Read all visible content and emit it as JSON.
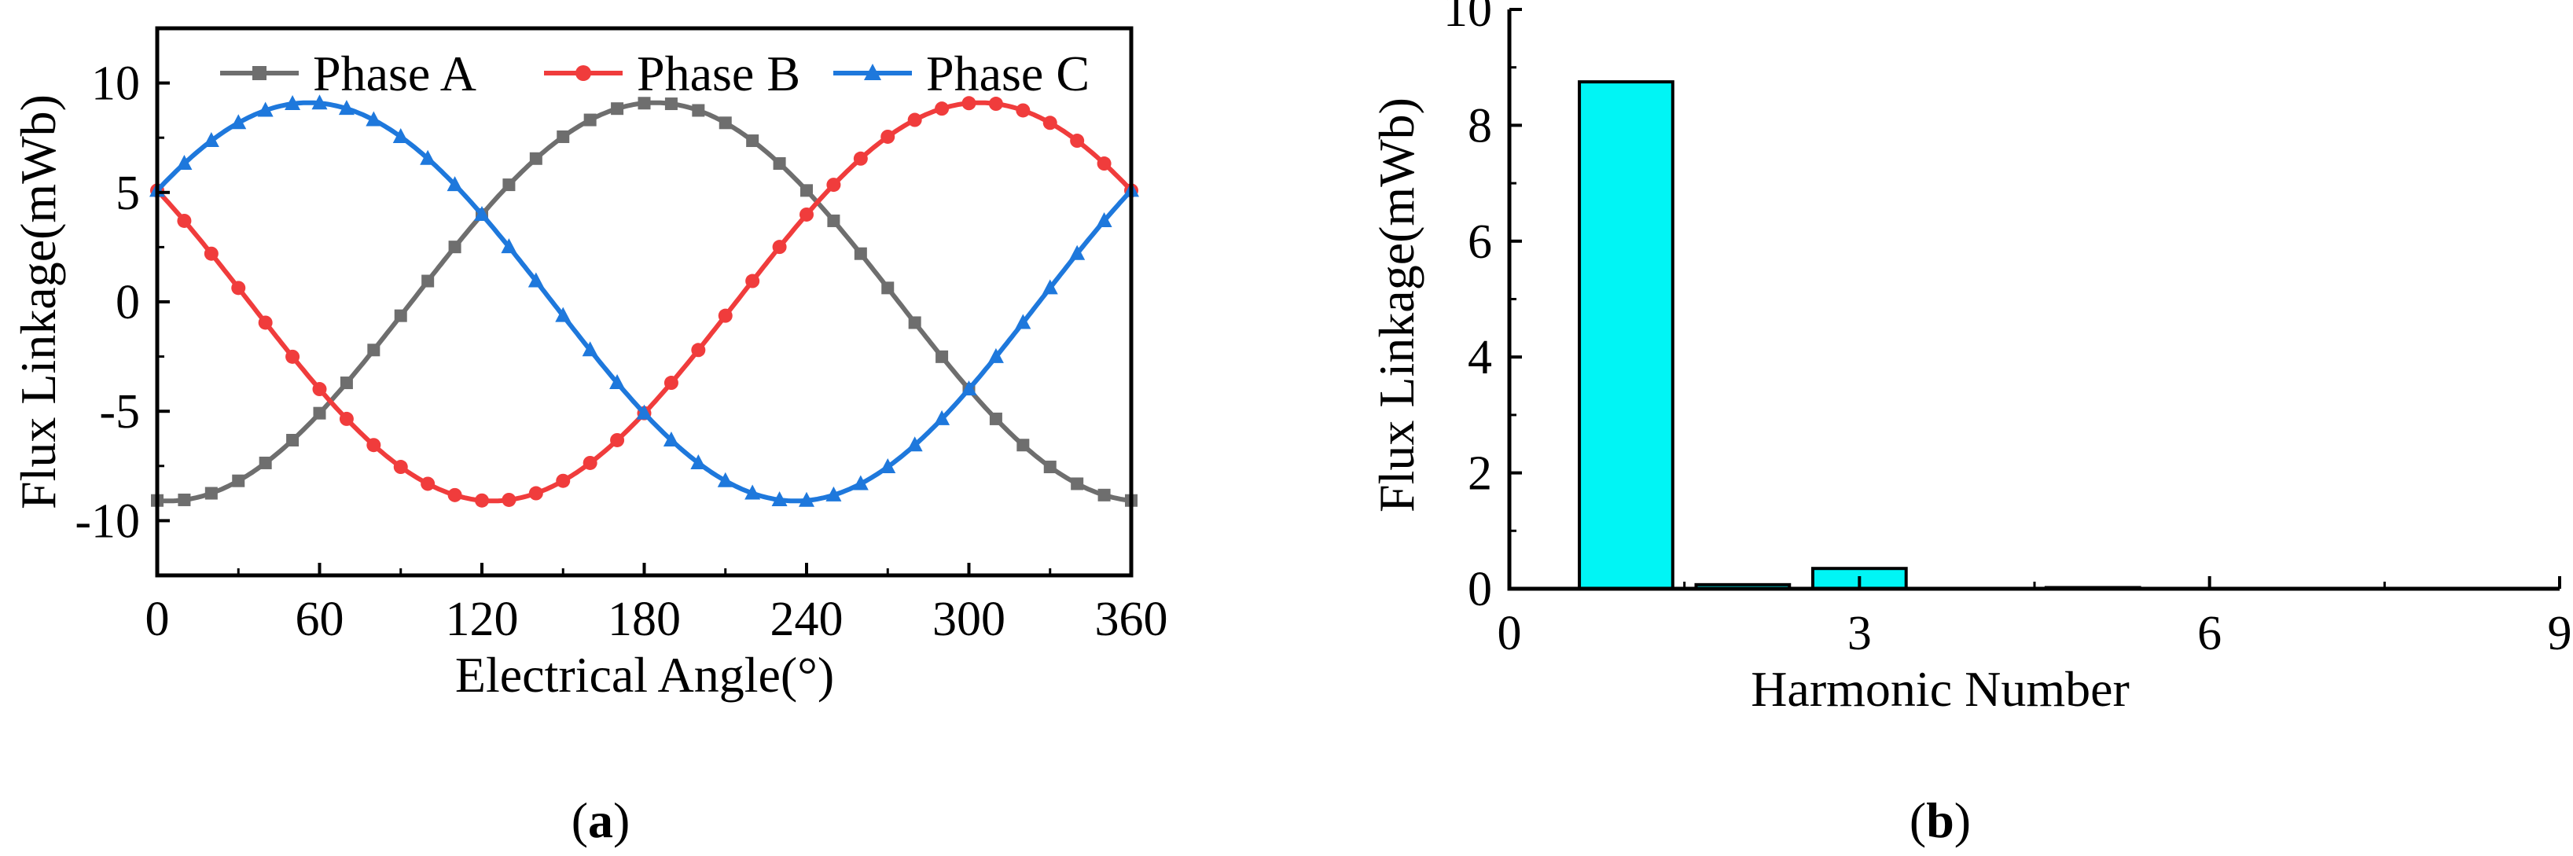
{
  "chart_data": [
    {
      "type": "line",
      "panel_label": "a",
      "xlabel": "Electrical Angle(°)",
      "ylabel": "Flux Linkage(mWb)",
      "xlim": [
        0,
        360
      ],
      "ylim": [
        -12.5,
        12.5
      ],
      "xticks": [
        0,
        60,
        120,
        180,
        240,
        300,
        360
      ],
      "yticks": [
        10,
        5,
        0,
        -5,
        -10
      ],
      "legend_position": "top",
      "amplitude": 9.1,
      "x": [
        0,
        10,
        20,
        30,
        40,
        50,
        60,
        70,
        80,
        90,
        100,
        110,
        120,
        130,
        140,
        150,
        160,
        170,
        180,
        190,
        200,
        210,
        220,
        230,
        240,
        250,
        260,
        270,
        280,
        290,
        300,
        310,
        320,
        330,
        340,
        350,
        360
      ],
      "series": [
        {
          "name": "Phase A",
          "color": "#6e6e6e",
          "marker": "square",
          "peak_angle": 184
        },
        {
          "name": "Phase B",
          "color": "#f03c3c",
          "marker": "circle",
          "peak_angle": 304
        },
        {
          "name": "Phase C",
          "color": "#1e78dc",
          "marker": "triangle",
          "peak_angle": 56
        }
      ]
    },
    {
      "type": "bar",
      "panel_label": "b",
      "xlabel": "Harmonic Number",
      "ylabel": "Flux Linkage(mWb)",
      "xlim": [
        0,
        9
      ],
      "ylim": [
        0,
        10
      ],
      "xticks": [
        0,
        3,
        6,
        9
      ],
      "yticks": [
        0,
        2,
        4,
        6,
        8,
        10
      ],
      "bar_color": "#00f5f5",
      "categories": [
        1,
        2,
        3,
        4,
        5
      ],
      "values": [
        8.75,
        0.07,
        0.35,
        0.0,
        0.02
      ]
    }
  ]
}
